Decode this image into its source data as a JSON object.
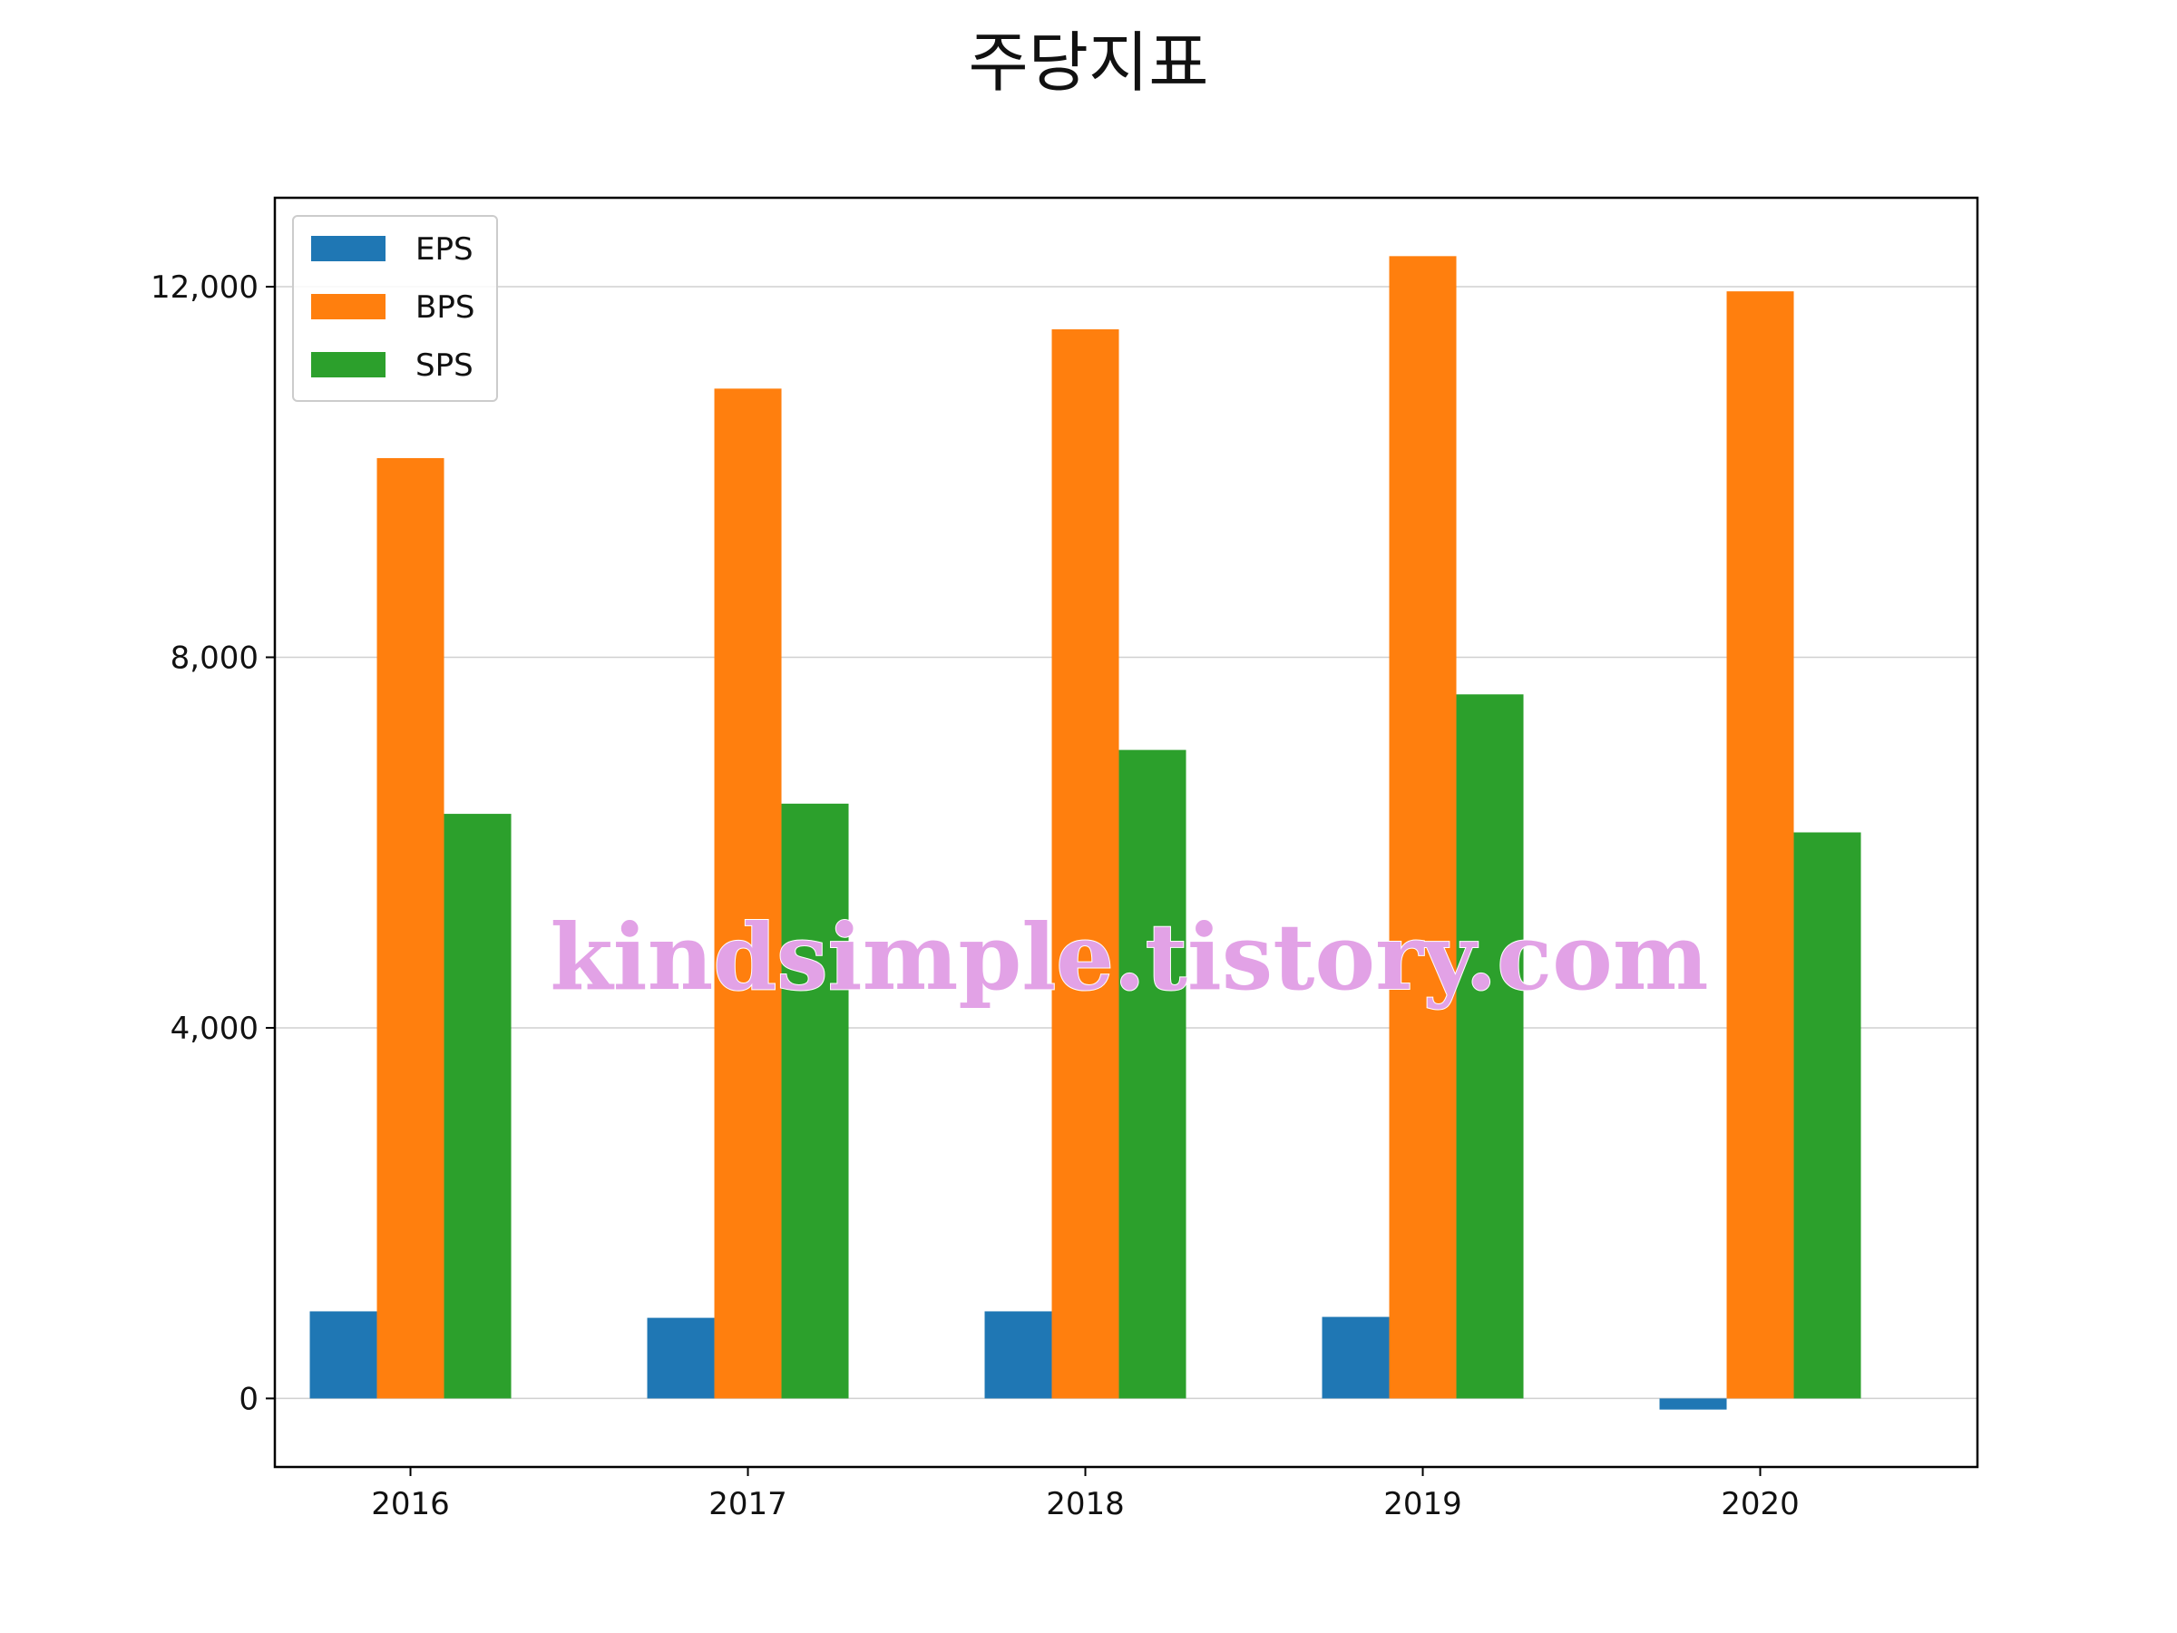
{
  "chart_data": {
    "type": "bar",
    "title": "주당지표",
    "xlabel": "",
    "ylabel": "",
    "categories": [
      "2016",
      "2017",
      "2018",
      "2019",
      "2020"
    ],
    "series": [
      {
        "name": "EPS",
        "color": "#1f77b4",
        "values": [
          940,
          870,
          940,
          880,
          -120
        ]
      },
      {
        "name": "BPS",
        "color": "#ff7f0e",
        "values": [
          10150,
          10900,
          11540,
          12330,
          11950
        ]
      },
      {
        "name": "SPS",
        "color": "#2ca02c",
        "values": [
          6310,
          6420,
          7000,
          7600,
          6110
        ]
      }
    ],
    "yticks": [
      0,
      4000,
      8000,
      12000
    ],
    "ytick_labels": [
      "0",
      "4,000",
      "8,000",
      "12,000"
    ],
    "ylim": [
      -740,
      12960
    ],
    "grid": "horizontal",
    "legend_position": "upper-left",
    "watermark": "kindsimple.tistory.com"
  }
}
